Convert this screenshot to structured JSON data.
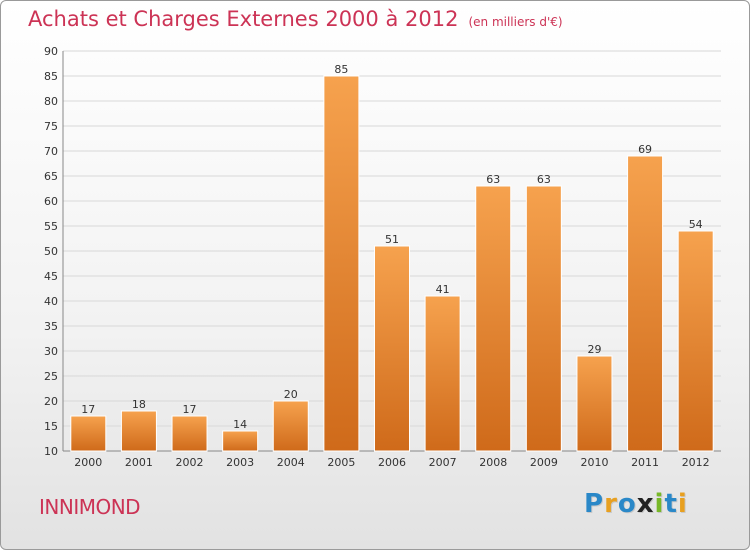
{
  "header": {
    "title": "Achats et Charges Externes 2000 à 2012",
    "unit": "(en milliers d'€)"
  },
  "footer": {
    "town": "INNIMOND",
    "logo_text": "Proxiti",
    "logo_colors": [
      "#2a88c8",
      "#e8a020",
      "#2a88c8",
      "#222222",
      "#78b828",
      "#2a88c8",
      "#e8a020"
    ]
  },
  "colors": {
    "bar_light": "#f6a24e",
    "bar_dark": "#cf6a1a",
    "title": "#cc3355",
    "grid": "#d8d8d8"
  },
  "chart_data": {
    "type": "bar",
    "title": "Achats et Charges Externes 2000 à 2012",
    "subtitle": "(en milliers d'€)",
    "xlabel": "",
    "ylabel": "",
    "categories": [
      "2000",
      "2001",
      "2002",
      "2003",
      "2004",
      "2005",
      "2006",
      "2007",
      "2008",
      "2009",
      "2010",
      "2011",
      "2012"
    ],
    "values": [
      17,
      18,
      17,
      14,
      20,
      85,
      51,
      41,
      63,
      63,
      29,
      69,
      54
    ],
    "ylim": [
      10,
      90
    ],
    "yticks": [
      10,
      15,
      20,
      25,
      30,
      35,
      40,
      45,
      50,
      55,
      60,
      65,
      70,
      75,
      80,
      85,
      90
    ],
    "grid": true,
    "legend": "none"
  }
}
